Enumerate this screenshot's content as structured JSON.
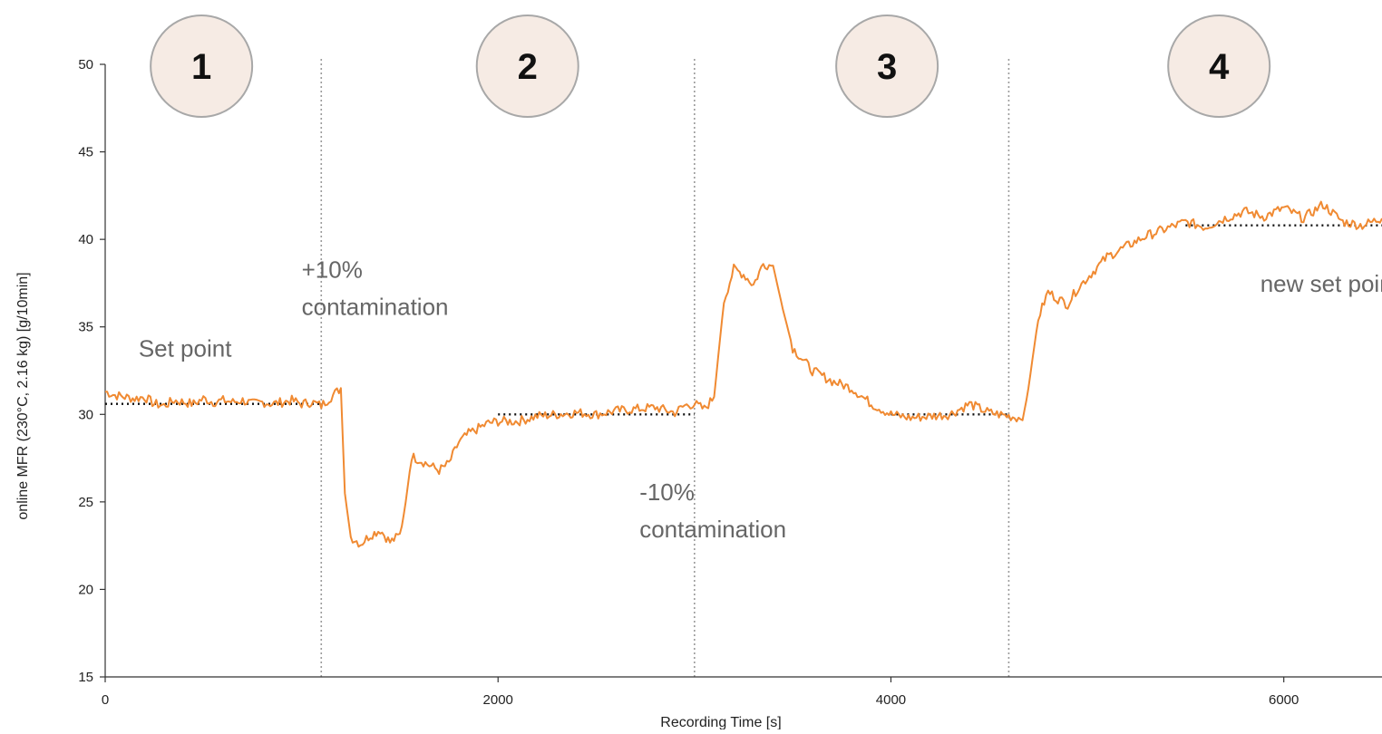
{
  "chart_data": {
    "type": "line",
    "title": "",
    "xlabel": "Recording Time [s]",
    "ylabel": "online MFR (230°C, 2.16 kg) [g/10min]",
    "xlim": [
      0,
      6500
    ],
    "ylim": [
      15,
      50
    ],
    "xticks": [
      0,
      2000,
      4000,
      6000
    ],
    "yticks": [
      15,
      20,
      25,
      30,
      35,
      40,
      45,
      50
    ],
    "grid": false,
    "legend": "none",
    "colors": {
      "series": "#f08a32",
      "reference": "#111111",
      "phase_divider": "#9a9a9a",
      "phase_circle_fill": "#f6ebe4",
      "phase_circle_stroke": "#a8a8a8"
    },
    "series": [
      {
        "x": [
          0,
          50,
          100,
          150,
          200,
          250,
          300,
          350,
          400,
          450,
          500,
          550,
          600,
          650,
          700,
          750,
          800,
          850,
          900,
          950,
          1000,
          1050,
          1100,
          1150,
          1180,
          1200,
          1220,
          1250,
          1300,
          1350,
          1400,
          1450,
          1500,
          1530,
          1560,
          1600,
          1650,
          1700,
          1750,
          1800,
          1850,
          1900,
          1950,
          2000,
          2100,
          2200,
          2300,
          2400,
          2500,
          2600,
          2700,
          2800,
          2900,
          2950,
          3000,
          3050,
          3100,
          3150,
          3200,
          3250,
          3300,
          3350,
          3400,
          3450,
          3500,
          3600,
          3700,
          3800,
          3900,
          4000,
          4100,
          4200,
          4300,
          4400,
          4500,
          4600,
          4650,
          4680,
          4700,
          4750,
          4800,
          4850,
          4900,
          4950,
          5000,
          5100,
          5200,
          5300,
          5400,
          5500,
          5600,
          5700,
          5800,
          5900,
          6000,
          6100,
          6200,
          6300,
          6400,
          6500
        ],
        "y": [
          31.3,
          31.1,
          31.0,
          30.9,
          31.0,
          30.6,
          30.5,
          30.8,
          30.7,
          30.6,
          30.9,
          30.7,
          30.8,
          30.7,
          30.8,
          30.6,
          30.7,
          30.6,
          30.7,
          30.8,
          30.6,
          30.7,
          30.5,
          31.0,
          31.3,
          31.5,
          25.5,
          23.0,
          22.6,
          23.1,
          23.4,
          22.7,
          23.1,
          25.0,
          27.6,
          27.4,
          27.1,
          26.8,
          27.2,
          28.4,
          28.9,
          29.2,
          29.5,
          29.6,
          29.6,
          29.9,
          30.0,
          30.1,
          30.0,
          30.2,
          30.3,
          30.4,
          30.1,
          30.5,
          30.6,
          30.3,
          31.0,
          36.5,
          38.3,
          38.0,
          37.4,
          38.6,
          38.5,
          36.0,
          33.8,
          32.5,
          31.9,
          31.5,
          30.6,
          30.0,
          29.8,
          29.9,
          30.0,
          30.6,
          30.1,
          29.9,
          29.8,
          30.0,
          31.5,
          35.5,
          37.0,
          36.6,
          36.3,
          37.2,
          37.8,
          39.0,
          39.6,
          40.2,
          40.6,
          41.0,
          40.7,
          41.2,
          41.6,
          41.3,
          41.8,
          41.2,
          42.0,
          41.0,
          40.8,
          41.2
        ]
      }
    ],
    "reference_lines": [
      {
        "label": "Set point",
        "x": [
          0,
          1100
        ],
        "y": 30.6
      },
      {
        "label": "",
        "x": [
          2000,
          3000
        ],
        "y": 30.0
      },
      {
        "label": "",
        "x": [
          4000,
          4600
        ],
        "y": 30.0
      },
      {
        "label": "new set point",
        "x": [
          5500,
          6500
        ],
        "y": 40.8
      }
    ],
    "phase_dividers": [
      1100,
      3000,
      4600
    ],
    "phases": [
      {
        "label": "1",
        "x": 490
      },
      {
        "label": "2",
        "x": 2150
      },
      {
        "label": "3",
        "x": 3980
      },
      {
        "label": "4",
        "x": 5670
      }
    ],
    "annotations": [
      {
        "key": "set_point",
        "lines": [
          "Set point"
        ],
        "x": 170,
        "y": 33.3
      },
      {
        "key": "plus_contamination",
        "lines": [
          "+10%",
          "contamination"
        ],
        "x": 1000,
        "y": 37.8
      },
      {
        "key": "minus_contamination",
        "lines": [
          "-10%",
          "contamination"
        ],
        "x": 2720,
        "y": 25.1
      },
      {
        "key": "new_set_point",
        "lines": [
          "new set point"
        ],
        "x": 5880,
        "y": 37.0
      }
    ]
  }
}
